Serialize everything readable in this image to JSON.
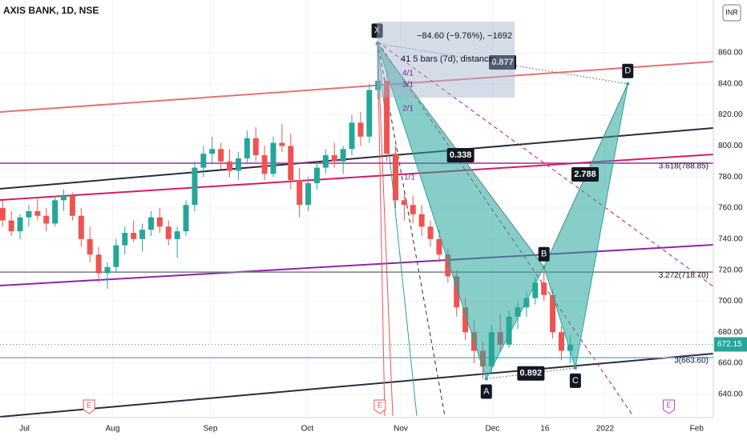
{
  "chart_data": {
    "type": "candlestick",
    "title": "AXIS BANK, 1D, NSE",
    "currency": "INR",
    "up_color": "#26a69a",
    "down_color": "#ef5350",
    "ylim": [
      625,
      894
    ],
    "yticks": [
      {
        "value": 640,
        "label": "640.00"
      },
      {
        "value": 660,
        "label": "660.00"
      },
      {
        "value": 680,
        "label": "680.00"
      },
      {
        "value": 700,
        "label": "700.00"
      },
      {
        "value": 720,
        "label": "720.00"
      },
      {
        "value": 740,
        "label": "740.00"
      },
      {
        "value": 760,
        "label": "760.00"
      },
      {
        "value": 780,
        "label": "780.00"
      },
      {
        "value": 800,
        "label": "800.00"
      },
      {
        "value": 820,
        "label": "820.00"
      },
      {
        "value": 840,
        "label": "840.00"
      },
      {
        "value": 860,
        "label": "860.00"
      }
    ],
    "xlim": [
      -0.3,
      81.4
    ],
    "xticks": [
      {
        "value": 2.5,
        "label": "Jul"
      },
      {
        "value": 12.6,
        "label": "Aug"
      },
      {
        "value": 23.8,
        "label": "Sep"
      },
      {
        "value": 34.9,
        "label": "Oct"
      },
      {
        "value": 45.6,
        "label": "Nov"
      },
      {
        "value": 56.1,
        "label": "Dec"
      },
      {
        "value": 62.1,
        "label": "16"
      },
      {
        "value": 69,
        "label": "2022"
      },
      {
        "value": 79.5,
        "label": "Feb"
      }
    ],
    "open": [
      760,
      752,
      745,
      754,
      758,
      755,
      750,
      765,
      768,
      755,
      740,
      730,
      718,
      722,
      736,
      744,
      740,
      746,
      754,
      748,
      740,
      745,
      762,
      786,
      795,
      798,
      790,
      784,
      792,
      805,
      794,
      782,
      802,
      800,
      778,
      762,
      776,
      786,
      794,
      790,
      798,
      815,
      806,
      836,
      842,
      795,
      765,
      762,
      756,
      748,
      740,
      730,
      716,
      696,
      680,
      668,
      658,
      680,
      672,
      690,
      696,
      702,
      712,
      704,
      680,
      668
    ],
    "high": [
      765,
      758,
      756,
      762,
      766,
      760,
      768,
      772,
      770,
      760,
      748,
      735,
      725,
      740,
      748,
      752,
      750,
      758,
      760,
      752,
      748,
      765,
      790,
      800,
      806,
      802,
      798,
      796,
      810,
      812,
      800,
      806,
      814,
      808,
      786,
      780,
      790,
      798,
      802,
      800,
      820,
      822,
      840,
      866,
      848,
      800,
      770,
      768,
      762,
      752,
      746,
      734,
      720,
      702,
      688,
      674,
      685,
      692,
      694,
      700,
      706,
      715,
      722,
      708,
      684,
      678
    ],
    "low": [
      748,
      742,
      740,
      748,
      752,
      745,
      748,
      758,
      752,
      735,
      725,
      712,
      708,
      718,
      730,
      738,
      732,
      742,
      744,
      736,
      728,
      742,
      758,
      780,
      788,
      785,
      780,
      778,
      788,
      790,
      778,
      780,
      796,
      772,
      754,
      758,
      772,
      782,
      786,
      782,
      794,
      800,
      802,
      830,
      790,
      760,
      752,
      750,
      742,
      735,
      725,
      712,
      690,
      675,
      660,
      650,
      654,
      668,
      670,
      682,
      690,
      698,
      700,
      676,
      662,
      660
    ],
    "close": [
      752,
      745,
      754,
      758,
      755,
      750,
      765,
      768,
      755,
      740,
      730,
      718,
      722,
      736,
      744,
      740,
      746,
      754,
      748,
      740,
      745,
      762,
      786,
      795,
      798,
      790,
      784,
      792,
      805,
      794,
      782,
      802,
      800,
      778,
      762,
      776,
      786,
      794,
      790,
      798,
      815,
      806,
      836,
      842,
      795,
      765,
      762,
      756,
      748,
      740,
      730,
      716,
      696,
      680,
      668,
      658,
      680,
      672,
      690,
      696,
      702,
      712,
      704,
      680,
      668,
      672
    ],
    "last_price": {
      "value": 672.15,
      "label": "672.15",
      "color": "#26a69a"
    },
    "levels": [
      {
        "value": 788.85,
        "label": "3.618(788.85)",
        "color": "#9c27b0"
      },
      {
        "value": 718.7,
        "label": "3.272(718.70)",
        "color": "#787b86"
      },
      {
        "value": 663.6,
        "label": "3(663.60)",
        "color": "#64b5f6"
      }
    ],
    "pattern": {
      "points": [
        {
          "label": "X",
          "x": 42.9,
          "y": 866
        },
        {
          "label": "A",
          "x": 55.4,
          "y": 650
        },
        {
          "label": "B",
          "x": 62,
          "y": 722
        },
        {
          "label": "C",
          "x": 65.6,
          "y": 657
        },
        {
          "label": "D",
          "x": 71.6,
          "y": 840
        }
      ],
      "ratios": [
        "0.338",
        "0.877",
        "0.892",
        "2.788"
      ]
    },
    "measure": {
      "line1": "−84.60 (−9.76%), −1692",
      "line2": "41 5 bars (7d), distance:"
    },
    "fan_labels": [
      "4/1",
      "3/1",
      "2/1",
      "1/1"
    ],
    "earnings": [
      {
        "x": 9.9,
        "label": "E"
      },
      {
        "x": 43.2,
        "label": "E"
      },
      {
        "x": 76.3,
        "label": "E"
      }
    ]
  }
}
